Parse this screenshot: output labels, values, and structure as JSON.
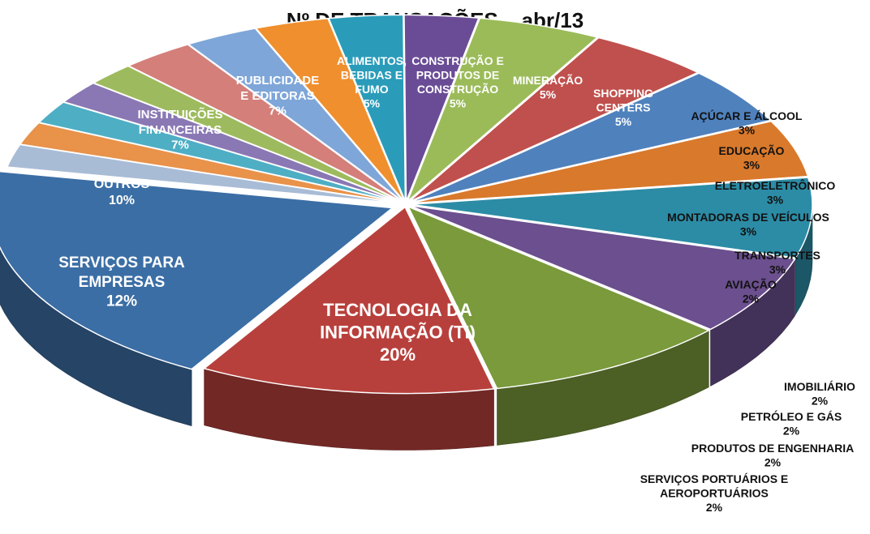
{
  "chart_data": {
    "type": "pie",
    "title": "Nº DE TRANSAÇÕES    abr/13",
    "series": [
      {
        "label": "TECNOLOGIA DA INFORMAÇÃO (TI)",
        "value": 20,
        "pct_label": "20%",
        "color": "#3b6ea5"
      },
      {
        "label": "SERVIÇOS PORTUÁRIOS E AEROPORTUÁRIOS",
        "value": 2,
        "pct_label": "2%",
        "color": "#a9bcd6"
      },
      {
        "label": "PRODUTOS DE ENGENHARIA",
        "value": 2,
        "pct_label": "2%",
        "color": "#e8924a"
      },
      {
        "label": "PETRÓLEO E GÁS",
        "value": 2,
        "pct_label": "2%",
        "color": "#4eaec4"
      },
      {
        "label": "IMOBILIÁRIO",
        "value": 2,
        "pct_label": "2%",
        "color": "#8a78b4"
      },
      {
        "label": "AVIAÇÃO",
        "value": 2,
        "pct_label": "2%",
        "color": "#9dbb5e"
      },
      {
        "label": "TRANSPORTES",
        "value": 3,
        "pct_label": "3%",
        "color": "#d47f7a"
      },
      {
        "label": "MONTADORAS DE VEÍCULOS",
        "value": 3,
        "pct_label": "3%",
        "color": "#7ea6d8"
      },
      {
        "label": "ELETROELETRÔNICO",
        "value": 3,
        "pct_label": "3%",
        "color": "#f08f2e"
      },
      {
        "label": "EDUCAÇÃO",
        "value": 3,
        "pct_label": "3%",
        "color": "#2a9cba"
      },
      {
        "label": "AÇÚCAR E ÁLCOOL",
        "value": 3,
        "pct_label": "3%",
        "color": "#6a4c96"
      },
      {
        "label": "SHOPPING CENTERS",
        "value": 5,
        "pct_label": "5%",
        "color": "#9bbb59"
      },
      {
        "label": "MINERAÇÃO",
        "value": 5,
        "pct_label": "5%",
        "color": "#c0504d"
      },
      {
        "label": "CONSTRUÇÃO E PRODUTOS DE CONSTRUÇÃO",
        "value": 5,
        "pct_label": "5%",
        "color": "#4f81bd"
      },
      {
        "label": "ALIMENTOS, BEBIDAS E FUMO",
        "value": 5,
        "pct_label": "5%",
        "color": "#d9792b"
      },
      {
        "label": "PUBLICIDADE E EDITORAS",
        "value": 7,
        "pct_label": "7%",
        "color": "#2c8ca6"
      },
      {
        "label": "INSTITUIÇÕES FINANCEIRAS",
        "value": 7,
        "pct_label": "7%",
        "color": "#6b4f8e"
      },
      {
        "label": "OUTROS",
        "value": 10,
        "pct_label": "10%",
        "color": "#7a9a3c"
      },
      {
        "label": "SERVIÇOS PARA EMPRESAS",
        "value": 12,
        "pct_label": "12%",
        "color": "#b8403c"
      }
    ],
    "style": "3d-exploded-pie",
    "legend": "none"
  }
}
